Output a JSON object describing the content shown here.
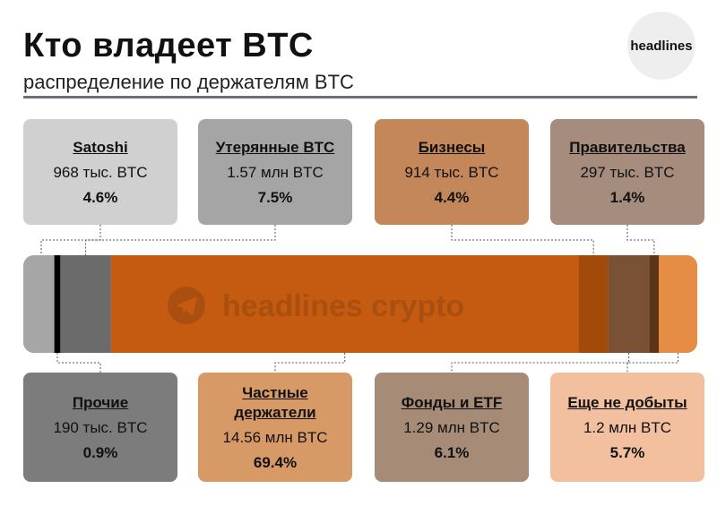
{
  "header": {
    "title": "Кто владеет BTC",
    "subtitle": "распределение по держателям BTC",
    "logo_text": "headlines"
  },
  "watermark": {
    "text": "headlines crypto",
    "icon": "telegram-icon"
  },
  "chart_data": {
    "type": "bar",
    "orientation": "horizontal-stacked-100",
    "unit": "%",
    "categories": [
      "Прочие",
      "Satoshi",
      "Утерянные BTC",
      "Частные держатели",
      "Бизнесы",
      "Фонды и ETF",
      "Правительства",
      "Еще не добыты"
    ],
    "amounts": [
      "190 тыс. BTC",
      "968 тыс. BTC",
      "1.57 млн BTC",
      "14.56 млн BTC",
      "914 тыс. BTC",
      "1.29 млн BTC",
      "297 тыс. BTC",
      "1.2 млн BTC"
    ],
    "values": [
      0.9,
      4.6,
      7.5,
      69.4,
      4.4,
      6.1,
      1.4,
      5.7
    ],
    "colors": [
      "#000000",
      "#a6a6a6",
      "#6b6b6b",
      "#c55a11",
      "#a14a0a",
      "#7a5134",
      "#5c3418",
      "#e58c45"
    ],
    "card_colors": [
      "#7c7c7c",
      "#d0d0d0",
      "#a5a5a5",
      "#d79a66",
      "#c4875a",
      "#a68b76",
      "#a58c7c",
      "#f2c09f"
    ]
  }
}
